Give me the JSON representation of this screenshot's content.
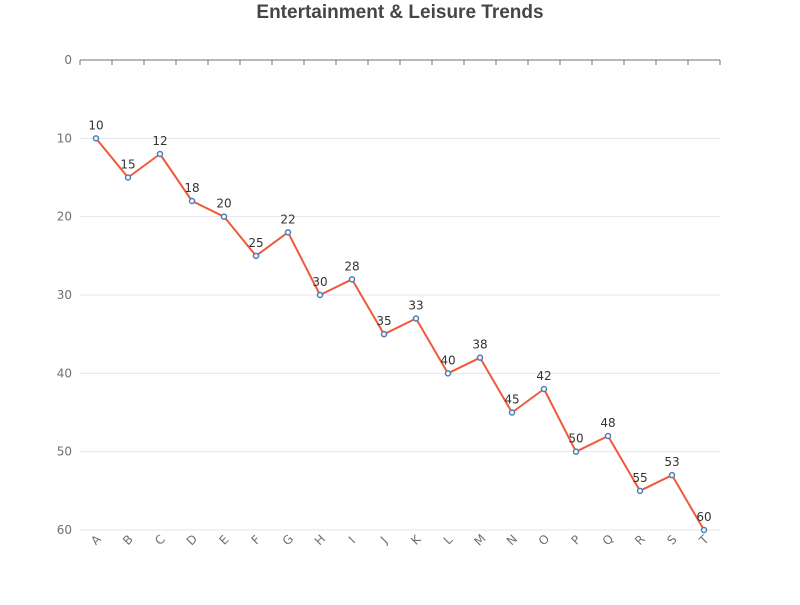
{
  "colors": {
    "line": "#f05a3c",
    "marker_stroke": "#4a7fb5",
    "marker_fill": "#ffffff",
    "grid": "#e0e6f1",
    "axis": "#6e7079"
  },
  "chart_data": {
    "type": "line",
    "title": "Entertainment & Leisure Trends",
    "xlabel": "",
    "ylabel": "",
    "categories": [
      "A",
      "B",
      "C",
      "D",
      "E",
      "F",
      "G",
      "H",
      "I",
      "J",
      "K",
      "L",
      "M",
      "N",
      "O",
      "P",
      "Q",
      "R",
      "S",
      "T"
    ],
    "series": [
      {
        "values": [
          10,
          15,
          12,
          18,
          20,
          25,
          22,
          30,
          28,
          35,
          33,
          40,
          38,
          45,
          42,
          50,
          48,
          55,
          53,
          60
        ]
      }
    ],
    "yticks": [
      "0",
      "10",
      "20",
      "30",
      "40",
      "50",
      "60"
    ],
    "ylim": [
      0,
      60
    ],
    "y_inverted": true,
    "x_axis_position": "top",
    "x_labels_position": "bottom",
    "x_label_rotation_deg": -45,
    "grid": "horizontal",
    "legend": "none",
    "data_labels": true
  }
}
